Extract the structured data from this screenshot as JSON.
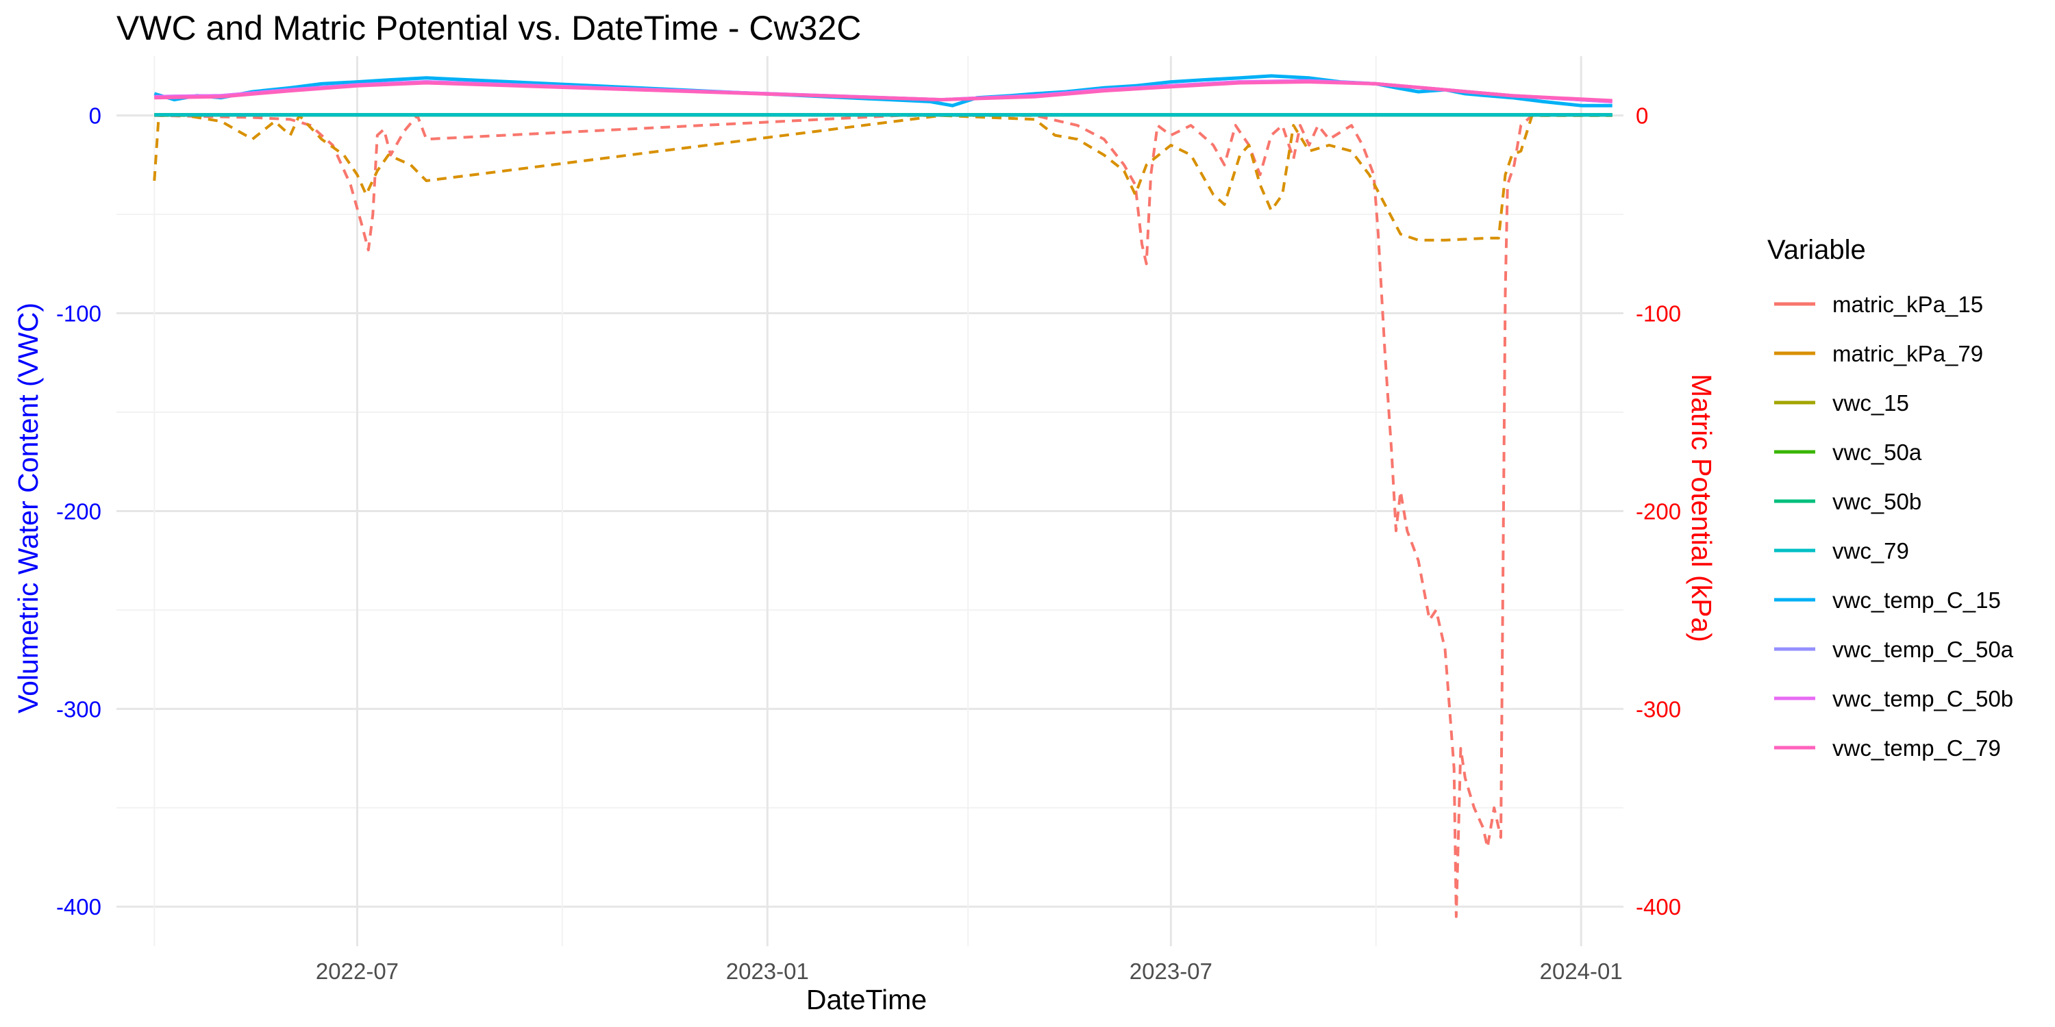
{
  "chart_data": {
    "type": "line",
    "title": "VWC and Matric Potential vs. DateTime - Cw32C",
    "xlabel": "DateTime",
    "ylabel_left": "Volumetric Water Content (VWC)",
    "ylabel_right": "Matric Potential (kPa)",
    "xlim": [
      "2022-03-15",
      "2024-01-20"
    ],
    "ylim": [
      -420,
      30
    ],
    "x_ticks": [
      "2022-07",
      "2023-01",
      "2023-07",
      "2024-01"
    ],
    "y_ticks_left": [
      0,
      -100,
      -200,
      -300,
      -400
    ],
    "y_ticks_right": [
      0,
      -100,
      -200,
      -300,
      -400
    ],
    "grid": true,
    "legend_title": "Variable",
    "legend_position": "right",
    "axis_colors": {
      "left": "#0000FF",
      "right": "#FF0000"
    },
    "series": [
      {
        "name": "matric_kPa_15",
        "color": "#F8766D",
        "dashed": true,
        "points": [
          [
            "2022-04-01",
            0
          ],
          [
            "2022-05-15",
            -1
          ],
          [
            "2022-06-01",
            -2
          ],
          [
            "2022-06-10",
            -5
          ],
          [
            "2022-06-20",
            -15
          ],
          [
            "2022-06-28",
            -35
          ],
          [
            "2022-07-03",
            -55
          ],
          [
            "2022-07-06",
            -68
          ],
          [
            "2022-07-08",
            -50
          ],
          [
            "2022-07-10",
            -10
          ],
          [
            "2022-07-13",
            -7
          ],
          [
            "2022-07-16",
            -20
          ],
          [
            "2022-07-22",
            -8
          ],
          [
            "2022-07-28",
            0
          ],
          [
            "2022-08-01",
            -12
          ],
          [
            "2023-03-01",
            0
          ],
          [
            "2023-05-01",
            0
          ],
          [
            "2023-05-20",
            -5
          ],
          [
            "2023-06-01",
            -12
          ],
          [
            "2023-06-10",
            -25
          ],
          [
            "2023-06-15",
            -35
          ],
          [
            "2023-06-18",
            -65
          ],
          [
            "2023-06-20",
            -75
          ],
          [
            "2023-06-22",
            -30
          ],
          [
            "2023-06-25",
            -5
          ],
          [
            "2023-07-01",
            -10
          ],
          [
            "2023-07-10",
            -5
          ],
          [
            "2023-07-20",
            -15
          ],
          [
            "2023-07-25",
            -25
          ],
          [
            "2023-07-30",
            -5
          ],
          [
            "2023-08-05",
            -15
          ],
          [
            "2023-08-10",
            -30
          ],
          [
            "2023-08-15",
            -10
          ],
          [
            "2023-08-20",
            -5
          ],
          [
            "2023-08-25",
            -22
          ],
          [
            "2023-08-28",
            -5
          ],
          [
            "2023-09-01",
            -15
          ],
          [
            "2023-09-05",
            -5
          ],
          [
            "2023-09-10",
            -12
          ],
          [
            "2023-09-20",
            -5
          ],
          [
            "2023-09-25",
            -15
          ],
          [
            "2023-09-30",
            -30
          ],
          [
            "2023-10-02",
            -60
          ],
          [
            "2023-10-05",
            -120
          ],
          [
            "2023-10-08",
            -170
          ],
          [
            "2023-10-10",
            -210
          ],
          [
            "2023-10-12",
            -190
          ],
          [
            "2023-10-15",
            -210
          ],
          [
            "2023-10-20",
            -225
          ],
          [
            "2023-10-25",
            -255
          ],
          [
            "2023-10-28",
            -250
          ],
          [
            "2023-11-01",
            -270
          ],
          [
            "2023-11-03",
            -300
          ],
          [
            "2023-11-05",
            -330
          ],
          [
            "2023-11-06",
            -405
          ],
          [
            "2023-11-08",
            -320
          ],
          [
            "2023-11-10",
            -335
          ],
          [
            "2023-11-14",
            -350
          ],
          [
            "2023-11-18",
            -360
          ],
          [
            "2023-11-20",
            -370
          ],
          [
            "2023-11-23",
            -350
          ],
          [
            "2023-11-26",
            -365
          ],
          [
            "2023-11-28",
            -90
          ],
          [
            "2023-11-29",
            -35
          ],
          [
            "2023-12-02",
            -25
          ],
          [
            "2023-12-05",
            -5
          ],
          [
            "2023-12-10",
            0
          ],
          [
            "2024-01-15",
            0
          ]
        ]
      },
      {
        "name": "matric_kPa_79",
        "color": "#D89000",
        "dashed": true,
        "points": [
          [
            "2022-04-01",
            -33
          ],
          [
            "2022-04-03",
            0
          ],
          [
            "2022-04-15",
            0
          ],
          [
            "2022-05-01",
            -3
          ],
          [
            "2022-05-15",
            -12
          ],
          [
            "2022-05-25",
            -3
          ],
          [
            "2022-06-01",
            -10
          ],
          [
            "2022-06-05",
            0
          ],
          [
            "2022-06-15",
            -12
          ],
          [
            "2022-06-25",
            -20
          ],
          [
            "2022-07-01",
            -30
          ],
          [
            "2022-07-05",
            -40
          ],
          [
            "2022-07-10",
            -28
          ],
          [
            "2022-07-15",
            -20
          ],
          [
            "2022-07-25",
            -25
          ],
          [
            "2022-08-01",
            -33
          ],
          [
            "2023-03-20",
            0
          ],
          [
            "2023-05-01",
            -2
          ],
          [
            "2023-05-10",
            -10
          ],
          [
            "2023-05-20",
            -12
          ],
          [
            "2023-06-01",
            -20
          ],
          [
            "2023-06-10",
            -28
          ],
          [
            "2023-06-15",
            -40
          ],
          [
            "2023-06-20",
            -25
          ],
          [
            "2023-07-01",
            -15
          ],
          [
            "2023-07-10",
            -20
          ],
          [
            "2023-07-15",
            -30
          ],
          [
            "2023-07-20",
            -40
          ],
          [
            "2023-07-25",
            -45
          ],
          [
            "2023-08-01",
            -20
          ],
          [
            "2023-08-05",
            -15
          ],
          [
            "2023-08-10",
            -35
          ],
          [
            "2023-08-15",
            -48
          ],
          [
            "2023-08-20",
            -40
          ],
          [
            "2023-08-25",
            -5
          ],
          [
            "2023-09-01",
            -18
          ],
          [
            "2023-09-10",
            -15
          ],
          [
            "2023-09-20",
            -18
          ],
          [
            "2023-09-28",
            -30
          ],
          [
            "2023-10-05",
            -45
          ],
          [
            "2023-10-12",
            -60
          ],
          [
            "2023-10-20",
            -63
          ],
          [
            "2023-11-01",
            -63
          ],
          [
            "2023-11-20",
            -62
          ],
          [
            "2023-11-25",
            -62
          ],
          [
            "2023-11-28",
            -30
          ],
          [
            "2023-12-01",
            -20
          ],
          [
            "2023-12-05",
            -18
          ],
          [
            "2023-12-10",
            0
          ],
          [
            "2024-01-15",
            0
          ]
        ]
      },
      {
        "name": "vwc_15",
        "color": "#A3A500",
        "dashed": false,
        "points": [
          [
            "2022-04-01",
            0.25
          ],
          [
            "2022-08-01",
            0.25
          ],
          [
            "2023-03-20",
            0.25
          ],
          [
            "2024-01-15",
            0.25
          ]
        ]
      },
      {
        "name": "vwc_50a",
        "color": "#39B600",
        "dashed": false,
        "points": [
          [
            "2022-04-01",
            0.3
          ],
          [
            "2022-08-01",
            0.3
          ],
          [
            "2023-03-20",
            0.3
          ],
          [
            "2024-01-15",
            0.3
          ]
        ]
      },
      {
        "name": "vwc_50b",
        "color": "#00BF7D",
        "dashed": false,
        "points": [
          [
            "2022-04-01",
            0.3
          ],
          [
            "2022-08-01",
            0.3
          ],
          [
            "2023-03-20",
            0.3
          ],
          [
            "2024-01-15",
            0.3
          ]
        ]
      },
      {
        "name": "vwc_79",
        "color": "#00BFC4",
        "dashed": false,
        "points": [
          [
            "2022-04-01",
            0.35
          ],
          [
            "2022-08-01",
            0.35
          ],
          [
            "2023-03-20",
            0.35
          ],
          [
            "2024-01-15",
            0.35
          ]
        ]
      },
      {
        "name": "vwc_temp_C_15",
        "color": "#00B0F6",
        "dashed": false,
        "points": [
          [
            "2022-04-01",
            11
          ],
          [
            "2022-04-10",
            8
          ],
          [
            "2022-04-20",
            10
          ],
          [
            "2022-05-01",
            9
          ],
          [
            "2022-05-15",
            12
          ],
          [
            "2022-06-01",
            14
          ],
          [
            "2022-06-15",
            16
          ],
          [
            "2022-07-01",
            17
          ],
          [
            "2022-07-15",
            18
          ],
          [
            "2022-08-01",
            19
          ],
          [
            "2023-03-15",
            7
          ],
          [
            "2023-03-25",
            5
          ],
          [
            "2023-04-05",
            9
          ],
          [
            "2023-04-20",
            10
          ],
          [
            "2023-05-01",
            11
          ],
          [
            "2023-05-15",
            12
          ],
          [
            "2023-06-01",
            14
          ],
          [
            "2023-06-15",
            15
          ],
          [
            "2023-07-01",
            17
          ],
          [
            "2023-07-15",
            18
          ],
          [
            "2023-08-01",
            19
          ],
          [
            "2023-08-15",
            20
          ],
          [
            "2023-09-01",
            19
          ],
          [
            "2023-09-15",
            17
          ],
          [
            "2023-10-01",
            16
          ],
          [
            "2023-10-10",
            14
          ],
          [
            "2023-10-20",
            12
          ],
          [
            "2023-11-01",
            13
          ],
          [
            "2023-11-10",
            11
          ],
          [
            "2023-11-20",
            10
          ],
          [
            "2023-12-01",
            9
          ],
          [
            "2023-12-15",
            7
          ],
          [
            "2024-01-01",
            5
          ],
          [
            "2024-01-15",
            5
          ]
        ]
      },
      {
        "name": "vwc_temp_C_50a",
        "color": "#9590FF",
        "dashed": false,
        "points": [
          [
            "2022-04-01",
            9.5
          ],
          [
            "2022-05-01",
            10
          ],
          [
            "2022-06-01",
            13
          ],
          [
            "2022-07-01",
            15.5
          ],
          [
            "2022-08-01",
            17
          ],
          [
            "2023-03-20",
            8
          ],
          [
            "2023-05-01",
            10
          ],
          [
            "2023-06-01",
            13
          ],
          [
            "2023-07-01",
            15
          ],
          [
            "2023-08-01",
            17
          ],
          [
            "2023-09-01",
            17.5
          ],
          [
            "2023-10-01",
            16
          ],
          [
            "2023-11-01",
            13
          ],
          [
            "2023-12-01",
            10
          ],
          [
            "2024-01-15",
            7
          ]
        ]
      },
      {
        "name": "vwc_temp_C_50b",
        "color": "#E76BF3",
        "dashed": false,
        "points": [
          [
            "2022-04-01",
            9.5
          ],
          [
            "2022-05-01",
            10
          ],
          [
            "2022-06-01",
            13
          ],
          [
            "2022-07-01",
            15.5
          ],
          [
            "2022-08-01",
            17
          ],
          [
            "2023-03-20",
            8
          ],
          [
            "2023-05-01",
            10
          ],
          [
            "2023-06-01",
            13
          ],
          [
            "2023-07-01",
            15
          ],
          [
            "2023-08-01",
            17
          ],
          [
            "2023-09-01",
            17.5
          ],
          [
            "2023-10-01",
            16
          ],
          [
            "2023-11-01",
            13
          ],
          [
            "2023-12-01",
            10
          ],
          [
            "2024-01-15",
            7
          ]
        ]
      },
      {
        "name": "vwc_temp_C_79",
        "color": "#FF62BC",
        "dashed": false,
        "points": [
          [
            "2022-04-01",
            9
          ],
          [
            "2022-05-01",
            9.5
          ],
          [
            "2022-06-01",
            12.5
          ],
          [
            "2022-07-01",
            15
          ],
          [
            "2022-08-01",
            16.5
          ],
          [
            "2023-03-20",
            8
          ],
          [
            "2023-05-01",
            9.5
          ],
          [
            "2023-06-01",
            12.5
          ],
          [
            "2023-07-01",
            14.5
          ],
          [
            "2023-08-01",
            16.5
          ],
          [
            "2023-09-01",
            17
          ],
          [
            "2023-10-01",
            16
          ],
          [
            "2023-11-01",
            13
          ],
          [
            "2023-12-01",
            10
          ],
          [
            "2024-01-15",
            7.5
          ]
        ]
      }
    ]
  }
}
